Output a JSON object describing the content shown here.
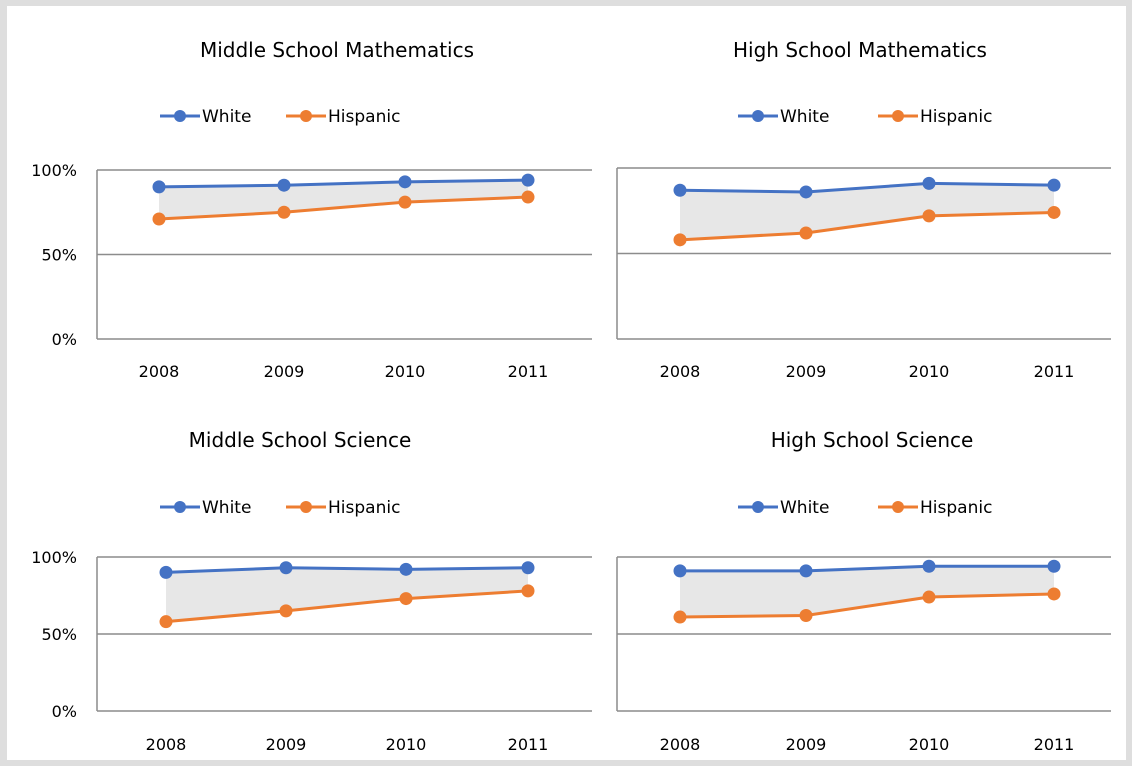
{
  "colors": {
    "white_series": "#4472c4",
    "hispanic_series": "#ed7d31",
    "gap_fill": "#e7e7e7",
    "axis": "#8c8c8c"
  },
  "chart_data": [
    {
      "type": "line",
      "title": "Middle School Mathematics",
      "categories": [
        "2008",
        "2009",
        "2010",
        "2011"
      ],
      "ylim": [
        0,
        100
      ],
      "yticks": [
        "0%",
        "50%",
        "100%"
      ],
      "legend": "top",
      "series": [
        {
          "name": "White",
          "values": [
            90,
            91,
            93,
            94
          ]
        },
        {
          "name": "Hispanic",
          "values": [
            71,
            75,
            81,
            84
          ]
        }
      ]
    },
    {
      "type": "line",
      "title": "High School Mathematics",
      "categories": [
        "2008",
        "2009",
        "2010",
        "2011"
      ],
      "ylim": [
        0,
        100
      ],
      "yticks": [
        "",
        "",
        ""
      ],
      "legend": "top",
      "series": [
        {
          "name": "White",
          "values": [
            87,
            86,
            91,
            90
          ]
        },
        {
          "name": "Hispanic",
          "values": [
            58,
            62,
            72,
            74
          ]
        }
      ]
    },
    {
      "type": "line",
      "title": "Middle School Science",
      "categories": [
        "2008",
        "2009",
        "2010",
        "2011"
      ],
      "ylim": [
        0,
        100
      ],
      "yticks": [
        "0%",
        "50%",
        "100%"
      ],
      "legend": "top",
      "series": [
        {
          "name": "White",
          "values": [
            90,
            93,
            92,
            93
          ]
        },
        {
          "name": "Hispanic",
          "values": [
            58,
            65,
            73,
            78
          ]
        }
      ]
    },
    {
      "type": "line",
      "title": "High School Science",
      "categories": [
        "2008",
        "2009",
        "2010",
        "2011"
      ],
      "ylim": [
        0,
        100
      ],
      "yticks": [
        "",
        "",
        ""
      ],
      "legend": "top",
      "series": [
        {
          "name": "White",
          "values": [
            91,
            91,
            94,
            94
          ]
        },
        {
          "name": "Hispanic",
          "values": [
            61,
            62,
            74,
            76
          ]
        }
      ]
    }
  ]
}
